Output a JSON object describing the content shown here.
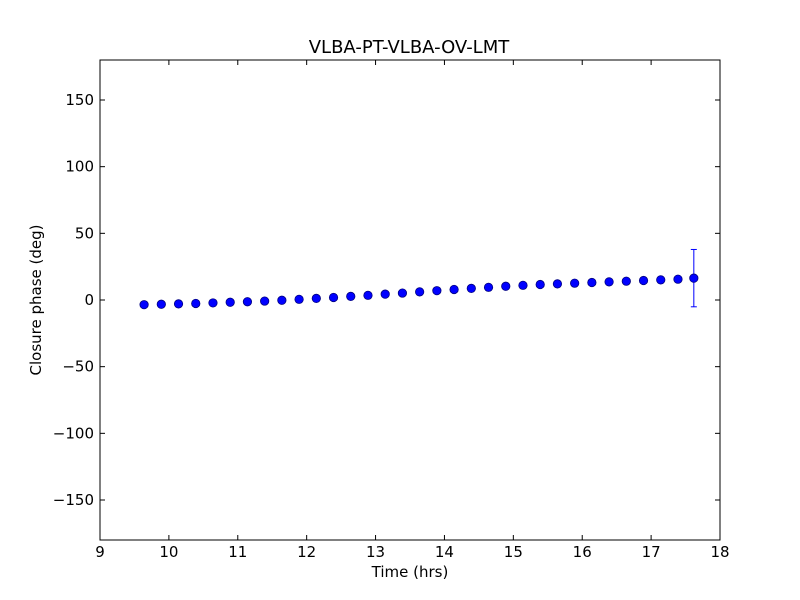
{
  "chart_data": {
    "type": "scatter",
    "title": "VLBA-PT-VLBA-OV-LMT",
    "xlabel": "Time (hrs)",
    "ylabel": "Closure phase (deg)",
    "xlim": [
      9,
      18
    ],
    "ylim": [
      -180,
      180
    ],
    "xticks": [
      9,
      10,
      11,
      12,
      13,
      14,
      15,
      16,
      17,
      18
    ],
    "xtick_labels": [
      "9",
      "10",
      "11",
      "12",
      "13",
      "14",
      "15",
      "16",
      "17",
      "18"
    ],
    "yticks": [
      150,
      100,
      50,
      0,
      -50,
      -100,
      -150
    ],
    "ytick_labels": [
      "150",
      "100",
      "50",
      "0",
      "−50",
      "−100",
      "−150"
    ],
    "grid": false,
    "marker_color": "#0000ff",
    "marker_edge_color": "#000080",
    "errorbar_color": "#0000ff",
    "series": [
      {
        "x": [
          9.64,
          9.89,
          10.14,
          10.39,
          10.64,
          10.89,
          11.14,
          11.39,
          11.64,
          11.89,
          12.14,
          12.39,
          12.64,
          12.89,
          13.14,
          13.39,
          13.64,
          13.89,
          14.14,
          14.39,
          14.64,
          14.89,
          15.14,
          15.39,
          15.64,
          15.89,
          16.14,
          16.39,
          16.64,
          16.89,
          17.14,
          17.39,
          17.62
        ],
        "y": [
          -3.5,
          -3.2,
          -2.9,
          -2.6,
          -2.2,
          -1.7,
          -1.3,
          -0.8,
          -0.2,
          0.5,
          1.2,
          1.9,
          2.7,
          3.5,
          4.4,
          5.2,
          6.1,
          7.0,
          7.9,
          8.7,
          9.5,
          10.3,
          11.0,
          11.6,
          12.1,
          12.6,
          13.1,
          13.6,
          14.1,
          14.6,
          15.1,
          15.6,
          16.4
        ],
        "yerr": [
          0.8,
          0.8,
          0.8,
          0.8,
          0.8,
          0.8,
          0.8,
          0.8,
          0.8,
          0.8,
          0.8,
          0.8,
          0.8,
          0.8,
          0.8,
          0.8,
          0.8,
          0.8,
          0.8,
          0.8,
          0.8,
          0.8,
          0.8,
          0.8,
          0.8,
          0.8,
          0.8,
          0.8,
          0.8,
          0.8,
          0.8,
          2.0,
          21.5
        ]
      }
    ]
  }
}
